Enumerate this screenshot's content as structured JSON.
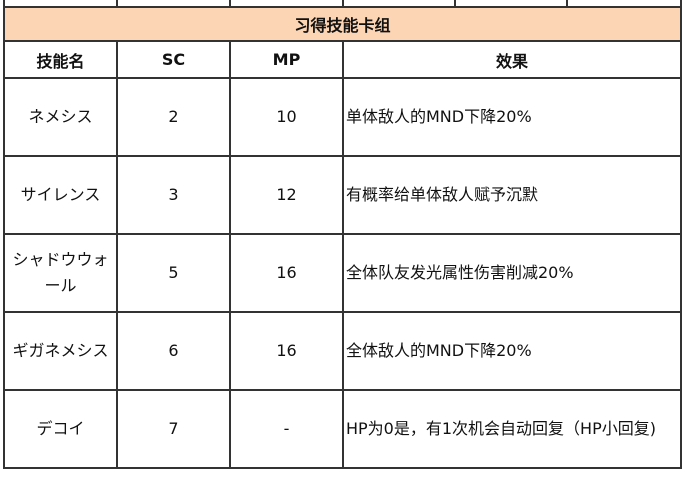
{
  "table": {
    "title": "习得技能卡组",
    "headers": [
      "技能名",
      "SC",
      "MP",
      "效果"
    ],
    "rows": [
      {
        "name": "ネメシス",
        "sc": "2",
        "mp": "10",
        "effect": "单体敌人的MND下降20%"
      },
      {
        "name": "サイレンス",
        "sc": "3",
        "mp": "12",
        "effect": "有概率给单体敌人赋予沉默"
      },
      {
        "name": "シャドウウォール",
        "sc": "5",
        "mp": "16",
        "effect": "全体队友发光属性伤害削减20%"
      },
      {
        "name": "ギガネメシス",
        "sc": "6",
        "mp": "16",
        "effect": "全体敌人的MND下降20%"
      },
      {
        "name": "デコイ",
        "sc": "7",
        "mp": "-",
        "effect": "HP为0是，有1次机会自动回复（HP小回复)"
      }
    ]
  },
  "colors": {
    "title_bg": "#fcd5b5",
    "border": "#333333"
  }
}
